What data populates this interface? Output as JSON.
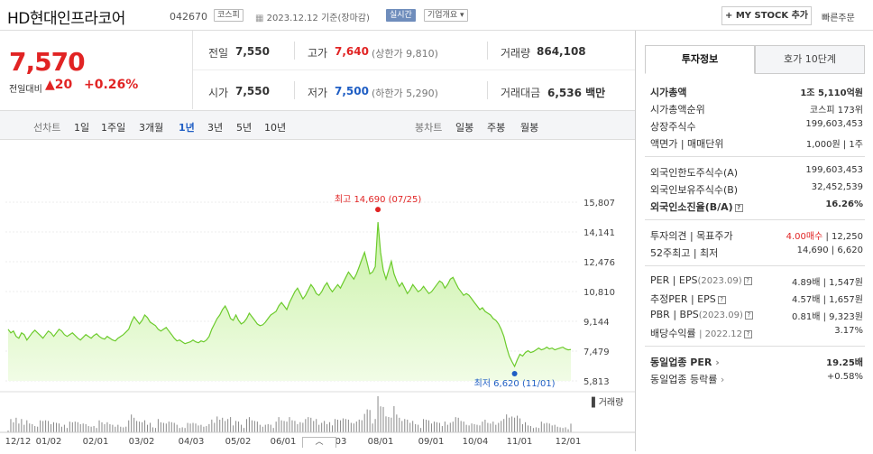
{
  "header": {
    "stock_name": "HD현대인프라코어",
    "stock_code": "042670",
    "market_badge": "코스피",
    "date_text": "2023.12.12  기준(장마감)",
    "realtime_badge": "실시간",
    "company_badge": "기업개요",
    "mystock_label": "+ MY STOCK 추가",
    "quick_order_label": "빠른주문"
  },
  "price": {
    "current": "7,570",
    "change_label": "전일대비",
    "change": "▲20",
    "change_pct": "+0.26%"
  },
  "quote": {
    "prev_label": "전일",
    "prev": "7,550",
    "high_label": "고가",
    "high": "7,640",
    "upper_limit": "(상한가 9,810)",
    "volume_label": "거래량",
    "volume": "864,108",
    "open_label": "시가",
    "open": "7,550",
    "low_label": "저가",
    "low": "7,500",
    "lower_limit": "(하한가 5,290)",
    "amount_label": "거래대금",
    "amount": "6,536 백만"
  },
  "toolbar": {
    "line_label": "선차트",
    "periods": [
      "1일",
      "1주일",
      "3개월",
      "1년",
      "3년",
      "5년",
      "10년"
    ],
    "active_period": "1년",
    "candle_label": "봉차트",
    "candles": [
      "일봉",
      "주봉",
      "월봉"
    ]
  },
  "chart_data": {
    "type": "area",
    "y_ticks": [
      "15,807",
      "14,141",
      "12,476",
      "10,810",
      "9,144",
      "7,479",
      "5,813"
    ],
    "ylim": [
      5813,
      15807
    ],
    "x_ticks": [
      "12/12",
      "01/02",
      "02/01",
      "03/02",
      "04/03",
      "05/02",
      "06/01",
      "07/03",
      "08/01",
      "09/01",
      "10/04",
      "11/01",
      "12/01"
    ],
    "high_annotation": "최고 14,690 (07/25)",
    "low_annotation": "최저 6,620 (11/01)",
    "volume_label": "거래량",
    "series": [
      {
        "values": [
          8700,
          8500,
          8600,
          8300,
          8200,
          8500,
          8400,
          8100,
          8300,
          8500,
          8650,
          8500,
          8350,
          8200,
          8400,
          8600,
          8500,
          8300,
          8500,
          8700,
          8600,
          8400,
          8300,
          8400,
          8500,
          8350,
          8200,
          8100,
          8250,
          8400,
          8300,
          8200,
          8350,
          8450,
          8300,
          8200,
          8150,
          8300,
          8200,
          8100,
          8050,
          8200,
          8300,
          8400,
          8550,
          8700,
          9100,
          9400,
          9200,
          9000,
          9200,
          9500,
          9350,
          9100,
          9000,
          8900,
          8700,
          8600,
          8700,
          8800,
          8600,
          8400,
          8200,
          8050,
          8100,
          8000,
          7900,
          7950,
          8000,
          8100,
          8000,
          7950,
          8050,
          8000,
          8100,
          8300,
          8700,
          9000,
          9300,
          9500,
          9800,
          10000,
          9700,
          9300,
          9200,
          9500,
          9200,
          9000,
          9100,
          9300,
          9600,
          9400,
          9200,
          9000,
          8900,
          8950,
          9100,
          9300,
          9500,
          9600,
          9700,
          10000,
          10200,
          10000,
          9800,
          10200,
          10500,
          10800,
          11000,
          10700,
          10400,
          10600,
          10900,
          11200,
          11000,
          10700,
          10600,
          10800,
          11100,
          11300,
          11000,
          10800,
          11000,
          11200,
          11000,
          11300,
          11600,
          11900,
          11700,
          11500,
          11800,
          12200,
          12600,
          13000,
          12400,
          11800,
          11900,
          12200,
          14690,
          13000,
          12000,
          11500,
          12000,
          12500,
          11800,
          11400,
          11100,
          11300,
          11000,
          10700,
          10900,
          11200,
          11000,
          10800,
          10900,
          11100,
          10900,
          10700,
          10800,
          11000,
          11200,
          11400,
          11300,
          11000,
          11200,
          11500,
          11600,
          11300,
          11000,
          10800,
          10600,
          10700,
          10600,
          10400,
          10200,
          10000,
          9800,
          9900,
          9700,
          9600,
          9500,
          9300,
          9200,
          9000,
          8700,
          8300,
          7700,
          7200,
          6900,
          6620,
          7000,
          7300,
          7200,
          7400,
          7500,
          7400,
          7450,
          7550,
          7650,
          7550,
          7600,
          7700,
          7600,
          7650,
          7550,
          7600,
          7650,
          7700,
          7600,
          7550,
          7570
        ]
      }
    ]
  },
  "tabs": {
    "invest": "투자정보",
    "hoga": "호가 10단계"
  },
  "info": {
    "market_cap_label": "시가총액",
    "market_cap": "1조 5,110억원",
    "rank_label": "시가총액순위",
    "rank": "코스피 173위",
    "shares_label": "상장주식수",
    "shares": "199,603,453",
    "par_label": "액면가 | 매매단위",
    "par": "1,000원 | 1주",
    "foreign_limit_label": "외국인한도주식수(A)",
    "foreign_limit": "199,603,453",
    "foreign_hold_label": "외국인보유주식수(B)",
    "foreign_hold": "32,452,539",
    "foreign_ratio_label": "외국인소진율(B/A)",
    "foreign_ratio": "16.26%",
    "opinion_label": "투자의견 | 목표주가",
    "opinion": "4.00매수",
    "target": "| 12,250",
    "range_label": "52주최고 | 최저",
    "range": "14,690 | 6,620",
    "per_label": "PER | EPS",
    "per_suffix": "(2023.09)",
    "per": "4.89배 | 1,547원",
    "eper_label": "추정PER | EPS",
    "eper": "4.57배 | 1,657원",
    "pbr_label": "PBR | BPS",
    "pbr_suffix": "(2023.09)",
    "pbr": "0.81배 | 9,323원",
    "div_label": "배당수익률",
    "div_suffix": "| 2022.12",
    "div": "3.17%",
    "sector_per_label": "동일업종 PER",
    "sector_per": "19.25배",
    "sector_rate_label": "동일업종 등락률",
    "sector_rate": "+0.58%"
  },
  "toggle_label": "︿"
}
